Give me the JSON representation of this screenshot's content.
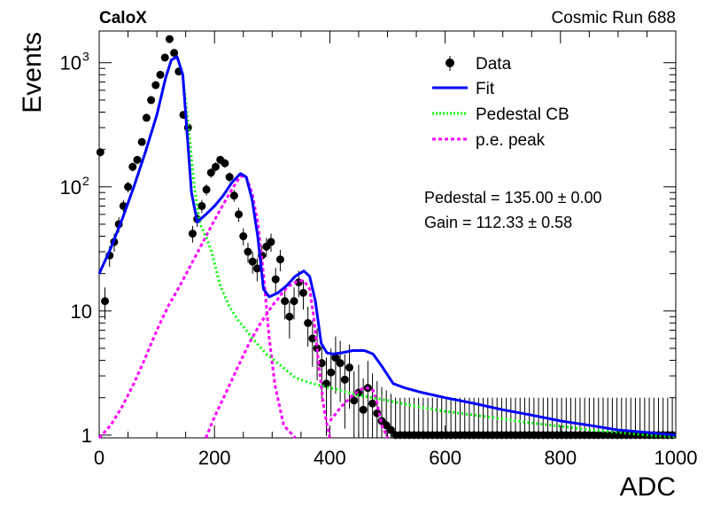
{
  "header": {
    "left_title": "CaloX",
    "right_title": "Cosmic Run 688"
  },
  "chart_data": {
    "type": "scatter",
    "xlabel": "ADC",
    "ylabel": "Events",
    "xlim": [
      0,
      1000
    ],
    "ylim": [
      0.95,
      1800
    ],
    "yscale": "log",
    "x_ticks": [
      0,
      200,
      400,
      600,
      800,
      1000
    ],
    "y_ticks": [
      {
        "value": 1,
        "label": "1"
      },
      {
        "value": 10,
        "label": "10"
      },
      {
        "value": 100,
        "label": "10",
        "exp": "2"
      },
      {
        "value": 1000,
        "label": "10",
        "exp": "3"
      }
    ],
    "legend": {
      "position": "top-right",
      "entries": [
        {
          "label": "Data",
          "style": "marker",
          "color": "#000000"
        },
        {
          "label": "Fit",
          "style": "solid",
          "color": "#0000ff"
        },
        {
          "label": "Pedestal CB",
          "style": "dotted",
          "color": "#00ff00"
        },
        {
          "label": "p.e. peak",
          "style": "dashed",
          "color": "#ff00ff"
        }
      ]
    },
    "annotations": [
      {
        "text": "Pedestal = 135.00 ± 0.00"
      },
      {
        "text": "Gain = 112.33 ± 0.58"
      }
    ],
    "data_points": {
      "name": "Data",
      "x": [
        2,
        10,
        18,
        26,
        34,
        42,
        50,
        58,
        66,
        74,
        82,
        90,
        98,
        106,
        114,
        122,
        130,
        138,
        146,
        154,
        162,
        170,
        178,
        186,
        194,
        202,
        210,
        218,
        226,
        234,
        242,
        250,
        258,
        266,
        274,
        282,
        290,
        298,
        306,
        314,
        322,
        330,
        338,
        346,
        354,
        362,
        370,
        378,
        386,
        394,
        402,
        410,
        418,
        426,
        434,
        442,
        450,
        458,
        466,
        474,
        482,
        490,
        498,
        506,
        514,
        522,
        530,
        538,
        546,
        554,
        562,
        570,
        578,
        586,
        594,
        602,
        610,
        618,
        626,
        634,
        642,
        650,
        658,
        666,
        674,
        682,
        690,
        698,
        706,
        714,
        722,
        730,
        738,
        746,
        754,
        762,
        770,
        778,
        786,
        794,
        802,
        810,
        818,
        826,
        834,
        842,
        850,
        858,
        866,
        874,
        882,
        890,
        898,
        906,
        914,
        922,
        930,
        938,
        946,
        954,
        962,
        970,
        978,
        986,
        994
      ],
      "y": [
        190,
        12,
        28,
        36,
        50,
        70,
        100,
        145,
        165,
        230,
        360,
        500,
        660,
        800,
        1100,
        1550,
        1200,
        850,
        380,
        300,
        42,
        55,
        70,
        95,
        130,
        145,
        165,
        155,
        120,
        85,
        60,
        40,
        30,
        25,
        22,
        28,
        33,
        36,
        18,
        26,
        12,
        9,
        12,
        17,
        14,
        8,
        6,
        5,
        3.8,
        2.6,
        3.2,
        4.2,
        3.8,
        2.8,
        3.5,
        1.9,
        2.2,
        1.6,
        2.4,
        1.8,
        1.5,
        1.3,
        1.2,
        1.1,
        1,
        1,
        1,
        1,
        1,
        1,
        1,
        1,
        1,
        1,
        1,
        1,
        1,
        1,
        1,
        1,
        1,
        1,
        1,
        1,
        1,
        1,
        1,
        1,
        1,
        1,
        1,
        1,
        1,
        1,
        1,
        1,
        1,
        1,
        1,
        1,
        1,
        1,
        1,
        1,
        1,
        1,
        1,
        1,
        1,
        1,
        1,
        1,
        1,
        1,
        1,
        1,
        1,
        1,
        1,
        1,
        1,
        1,
        1,
        1,
        1
      ],
      "yerr_rel": 0.0
    },
    "series": [
      {
        "name": "Fit",
        "x": [
          0,
          20,
          40,
          60,
          80,
          100,
          115,
          125,
          135,
          145,
          160,
          170,
          185,
          200,
          215,
          230,
          245,
          255,
          265,
          275,
          285,
          295,
          310,
          325,
          340,
          355,
          365,
          375,
          385,
          395,
          405,
          420,
          440,
          460,
          475,
          490,
          510,
          530,
          560,
          600,
          650,
          700,
          750,
          800,
          850,
          900,
          950,
          1000
        ],
        "y": [
          20,
          32,
          55,
          100,
          190,
          380,
          750,
          1050,
          1120,
          800,
          90,
          52,
          60,
          70,
          85,
          108,
          128,
          120,
          80,
          40,
          15,
          13,
          14,
          16,
          19,
          21,
          19,
          12,
          5.5,
          4.6,
          4.5,
          4.6,
          4.8,
          4.8,
          4.5,
          3.6,
          2.6,
          2.4,
          2.2,
          2.0,
          1.8,
          1.6,
          1.45,
          1.3,
          1.2,
          1.1,
          1.05,
          1.0
        ]
      },
      {
        "name": "Pedestal CB",
        "x": [
          0,
          20,
          40,
          60,
          80,
          100,
          115,
          125,
          135,
          145,
          155,
          165,
          175,
          185,
          195,
          210,
          225,
          240,
          255,
          270,
          290,
          310,
          340,
          370,
          400,
          450,
          500,
          550,
          600,
          650,
          700,
          750,
          800,
          850,
          900,
          950,
          1000
        ],
        "y": [
          20,
          32,
          55,
          100,
          190,
          380,
          750,
          1050,
          1120,
          800,
          300,
          100,
          50,
          40,
          30,
          16,
          11,
          8.5,
          7,
          5.7,
          4.5,
          3.8,
          2.9,
          2.6,
          2.4,
          2.1,
          1.9,
          1.7,
          1.55,
          1.45,
          1.35,
          1.25,
          1.18,
          1.1,
          1.05,
          1.0,
          0.97
        ]
      },
      {
        "name": "p.e. peak 1",
        "x": [
          0,
          20,
          40,
          60,
          80,
          100,
          120,
          140,
          160,
          180,
          200,
          215,
          230,
          245,
          255,
          265,
          275,
          285,
          295,
          305,
          320,
          340
        ],
        "y": [
          0.95,
          1.2,
          1.7,
          2.6,
          4.2,
          7,
          11,
          16,
          24,
          36,
          54,
          72,
          95,
          122,
          120,
          90,
          52,
          20,
          6,
          2.5,
          1.2,
          0.95
        ]
      },
      {
        "name": "p.e. peak 2",
        "x": [
          185,
          200,
          220,
          240,
          260,
          280,
          300,
          310,
          320,
          330,
          345,
          355,
          365,
          372,
          380,
          390,
          400
        ],
        "y": [
          0.95,
          1.4,
          2.2,
          3.5,
          5.5,
          8,
          11,
          12.5,
          14.5,
          16,
          17.5,
          17.5,
          15,
          9,
          4,
          1.6,
          0.95
        ]
      },
      {
        "name": "p.e. peak 3",
        "x": [
          400,
          420,
          440,
          455,
          465,
          475,
          482,
          490,
          500
        ],
        "y": [
          1.3,
          1.7,
          2.1,
          2.35,
          2.4,
          2.3,
          1.8,
          1.2,
          0.95
        ]
      }
    ]
  }
}
